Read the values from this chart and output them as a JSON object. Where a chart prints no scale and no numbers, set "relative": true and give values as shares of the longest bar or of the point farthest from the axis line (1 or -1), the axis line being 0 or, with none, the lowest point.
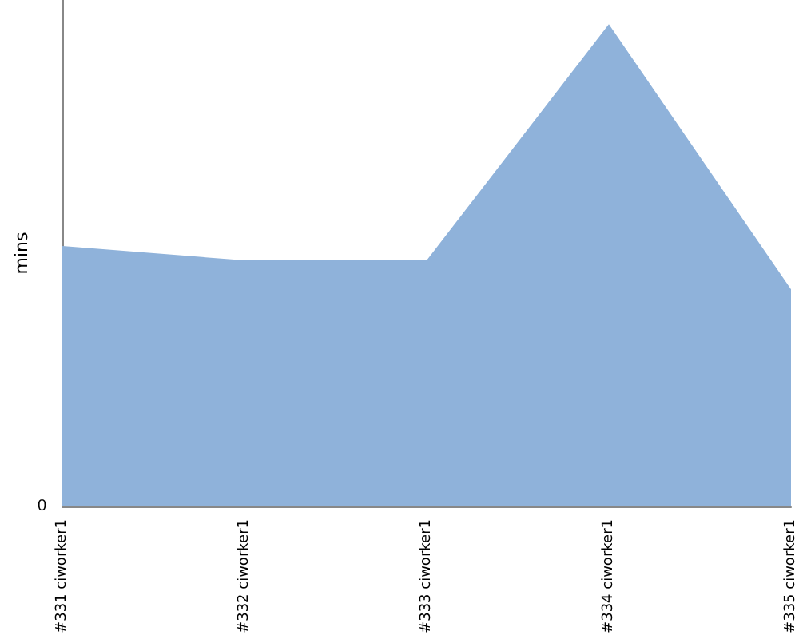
{
  "chart_data": {
    "type": "area",
    "relative": true,
    "ylabel": "mins",
    "categories": [
      "#331 ciworker1",
      "#332 ciworker1",
      "#333 ciworker1",
      "#334 ciworker1",
      "#335 ciworker1"
    ],
    "series": [
      {
        "color": "#8fb2da",
        "values": [
          0.54,
          0.51,
          0.51,
          1,
          0.45
        ]
      }
    ],
    "annotations": [
      "0"
    ]
  }
}
